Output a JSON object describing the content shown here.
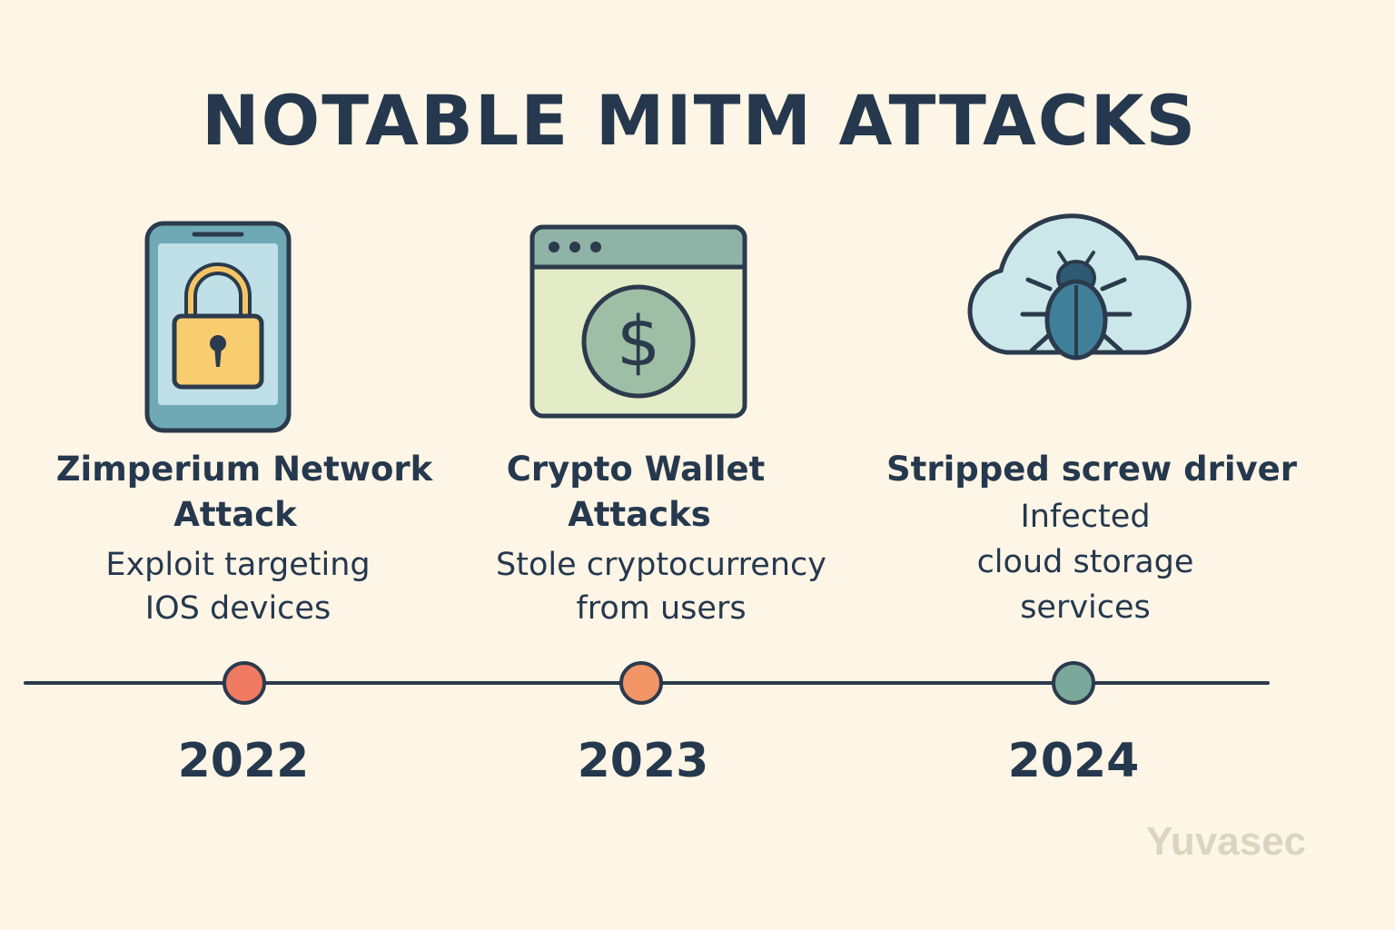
{
  "title": "NOTABLE MITM ATTACKS",
  "events": [
    {
      "icon": "padlock-phone-icon",
      "title_line1": "Zimperium Network",
      "title_line2": "Attack",
      "description": "Exploit targeting\nIOS devices",
      "year": "2022",
      "dot_color": "#f07a62"
    },
    {
      "icon": "dollar-browser-icon",
      "title_line1": "Crypto Wallet",
      "title_line2": "Attacks",
      "description": "Stole cryptocurrency\nfrom users",
      "year": "2023",
      "dot_color": "#f19466"
    },
    {
      "icon": "bug-cloud-icon",
      "title_line1": "Stripped screw driver",
      "title_line2": "",
      "description": "Infected\ncloud storage\nservices",
      "year": "2024",
      "dot_color": "#7aa89a"
    }
  ],
  "watermark": "Yuvasec",
  "colors": {
    "background": "#fdf5e6",
    "text": "#25384d",
    "line": "#2b3a4c"
  }
}
